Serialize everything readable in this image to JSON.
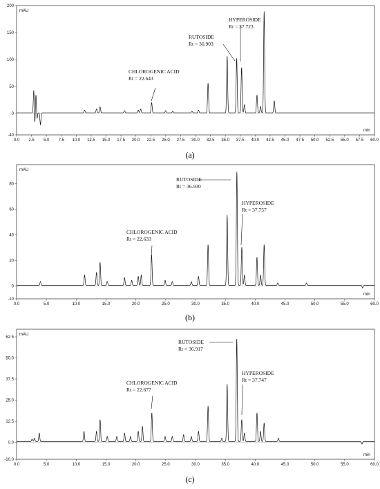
{
  "chart_data": [
    {
      "type": "line",
      "panel_label": "(a)",
      "ylabel": "mAU",
      "xlabel": "min",
      "xlim": [
        0,
        60
      ],
      "ylim": [
        -40,
        200
      ],
      "x_ticks": [
        "0.0",
        "2.5",
        "5.0",
        "7.5",
        "10.0",
        "12.5",
        "15.0",
        "17.5",
        "20.0",
        "22.5",
        "25.0",
        "27.5",
        "30.0",
        "32.5",
        "35.0",
        "37.5",
        "40.0",
        "42.5",
        "45.0",
        "47.5",
        "50.0",
        "52.5",
        "55.0",
        "57.5",
        "60.0"
      ],
      "y_ticks": [
        "-40",
        "0",
        "50",
        "100",
        "150",
        "200"
      ],
      "baseline": 1,
      "peaks": [
        {
          "x": 2.9,
          "y": 46
        },
        {
          "x": 3.05,
          "y": -28
        },
        {
          "x": 3.25,
          "y": 38
        },
        {
          "x": 3.4,
          "y": -15
        },
        {
          "x": 4.0,
          "y": -22
        },
        {
          "x": 11.4,
          "y": 5
        },
        {
          "x": 13.4,
          "y": 7
        },
        {
          "x": 14.0,
          "y": 11
        },
        {
          "x": 18.1,
          "y": 4
        },
        {
          "x": 20.4,
          "y": 5
        },
        {
          "x": 20.8,
          "y": 7
        },
        {
          "x": 22.643,
          "y": 19
        },
        {
          "x": 25.0,
          "y": 4
        },
        {
          "x": 26.2,
          "y": 3
        },
        {
          "x": 29.4,
          "y": 3
        },
        {
          "x": 30.5,
          "y": 5
        },
        {
          "x": 32.1,
          "y": 55
        },
        {
          "x": 35.3,
          "y": 105
        },
        {
          "x": 36.903,
          "y": 101
        },
        {
          "x": 37.723,
          "y": 84
        },
        {
          "x": 38.2,
          "y": 15
        },
        {
          "x": 40.3,
          "y": 33
        },
        {
          "x": 40.9,
          "y": 12
        },
        {
          "x": 41.5,
          "y": 188
        },
        {
          "x": 43.2,
          "y": 22
        }
      ],
      "annotations": [
        {
          "name": "CHLOROGENIC ACID",
          "rt": "Rt = 22.643",
          "x": 22.643
        },
        {
          "name": "RUTOSIDE",
          "rt": "Rt = 36.903",
          "x": 36.903
        },
        {
          "name": "HYPEROSIDE",
          "rt": "Rt = 37.723",
          "x": 37.723
        }
      ]
    },
    {
      "type": "line",
      "panel_label": "(b)",
      "ylabel": "mAU",
      "xlabel": "min",
      "xlim": [
        0,
        60
      ],
      "ylim": [
        -10,
        95
      ],
      "x_ticks": [
        "0.0",
        "5.0",
        "10.0",
        "15.0",
        "20.0",
        "25.0",
        "30.0",
        "35.0",
        "40.0",
        "45.0",
        "50.0",
        "55.0",
        "60.0"
      ],
      "y_ticks": [
        "-10",
        "0",
        "20",
        "40",
        "60",
        "80"
      ],
      "baseline": 0.5,
      "peaks": [
        {
          "x": 4.0,
          "y": 3
        },
        {
          "x": 11.4,
          "y": 8
        },
        {
          "x": 13.4,
          "y": 10
        },
        {
          "x": 14.0,
          "y": 18
        },
        {
          "x": 15.2,
          "y": 3
        },
        {
          "x": 18.1,
          "y": 6
        },
        {
          "x": 19.3,
          "y": 4
        },
        {
          "x": 20.4,
          "y": 7
        },
        {
          "x": 20.9,
          "y": 8
        },
        {
          "x": 22.633,
          "y": 24
        },
        {
          "x": 24.9,
          "y": 4
        },
        {
          "x": 26.1,
          "y": 3
        },
        {
          "x": 29.3,
          "y": 3
        },
        {
          "x": 30.5,
          "y": 7
        },
        {
          "x": 32.1,
          "y": 32
        },
        {
          "x": 35.3,
          "y": 55
        },
        {
          "x": 36.93,
          "y": 89
        },
        {
          "x": 37.757,
          "y": 30
        },
        {
          "x": 38.2,
          "y": 8
        },
        {
          "x": 40.3,
          "y": 22
        },
        {
          "x": 40.9,
          "y": 8
        },
        {
          "x": 41.5,
          "y": 32
        },
        {
          "x": 43.8,
          "y": 2
        },
        {
          "x": 48.6,
          "y": 2
        },
        {
          "x": 58.0,
          "y": -2
        }
      ],
      "annotations": [
        {
          "name": "CHLOROGENIC ACID",
          "rt": "Rt = 22.633",
          "x": 22.633
        },
        {
          "name": "RUTOSIDE",
          "rt": "Rt = 36.930",
          "x": 36.93
        },
        {
          "name": "HYPEROSIDE",
          "rt": "Rt = 37.757",
          "x": 37.757
        }
      ]
    },
    {
      "type": "line",
      "panel_label": "(c)",
      "ylabel": "mAU",
      "xlabel": "min",
      "xlim": [
        0,
        60
      ],
      "ylim": [
        -10,
        67
      ],
      "x_ticks": [
        "0.0",
        "5.0",
        "10.0",
        "15.0",
        "20.0",
        "25.0",
        "30.0",
        "35.0",
        "40.0",
        "45.0",
        "50.0",
        "55.0",
        "60.0"
      ],
      "y_ticks": [
        "-10.0",
        "0.0",
        "12.5",
        "25.0",
        "37.5",
        "50.0",
        "62.5"
      ],
      "baseline": 0.5,
      "peaks": [
        {
          "x": 2.6,
          "y": 1.5
        },
        {
          "x": 3.0,
          "y": 2
        },
        {
          "x": 3.8,
          "y": 5
        },
        {
          "x": 11.3,
          "y": 6
        },
        {
          "x": 13.4,
          "y": 6
        },
        {
          "x": 14.0,
          "y": 13
        },
        {
          "x": 15.2,
          "y": 3
        },
        {
          "x": 16.8,
          "y": 3
        },
        {
          "x": 18.1,
          "y": 5
        },
        {
          "x": 19.1,
          "y": 3
        },
        {
          "x": 20.4,
          "y": 6
        },
        {
          "x": 21.1,
          "y": 9
        },
        {
          "x": 22.677,
          "y": 17
        },
        {
          "x": 24.9,
          "y": 3
        },
        {
          "x": 26.1,
          "y": 3
        },
        {
          "x": 28.0,
          "y": 4
        },
        {
          "x": 29.3,
          "y": 3
        },
        {
          "x": 30.5,
          "y": 6
        },
        {
          "x": 32.1,
          "y": 21
        },
        {
          "x": 34.4,
          "y": 2
        },
        {
          "x": 35.3,
          "y": 34
        },
        {
          "x": 36.917,
          "y": 61
        },
        {
          "x": 37.747,
          "y": 13
        },
        {
          "x": 38.2,
          "y": 5
        },
        {
          "x": 40.3,
          "y": 17
        },
        {
          "x": 40.9,
          "y": 6
        },
        {
          "x": 41.5,
          "y": 11
        },
        {
          "x": 43.9,
          "y": 2
        },
        {
          "x": 57.9,
          "y": -1.5
        }
      ],
      "annotations": [
        {
          "name": "CHLOROGENIC ACID",
          "rt": "Rt = 22.677",
          "x": 22.677
        },
        {
          "name": "RUTOSIDE",
          "rt": "Rt = 36.917",
          "x": 36.917
        },
        {
          "name": "HYPEROSIDE",
          "rt": "Rt = 37.747",
          "x": 37.747
        }
      ]
    }
  ]
}
